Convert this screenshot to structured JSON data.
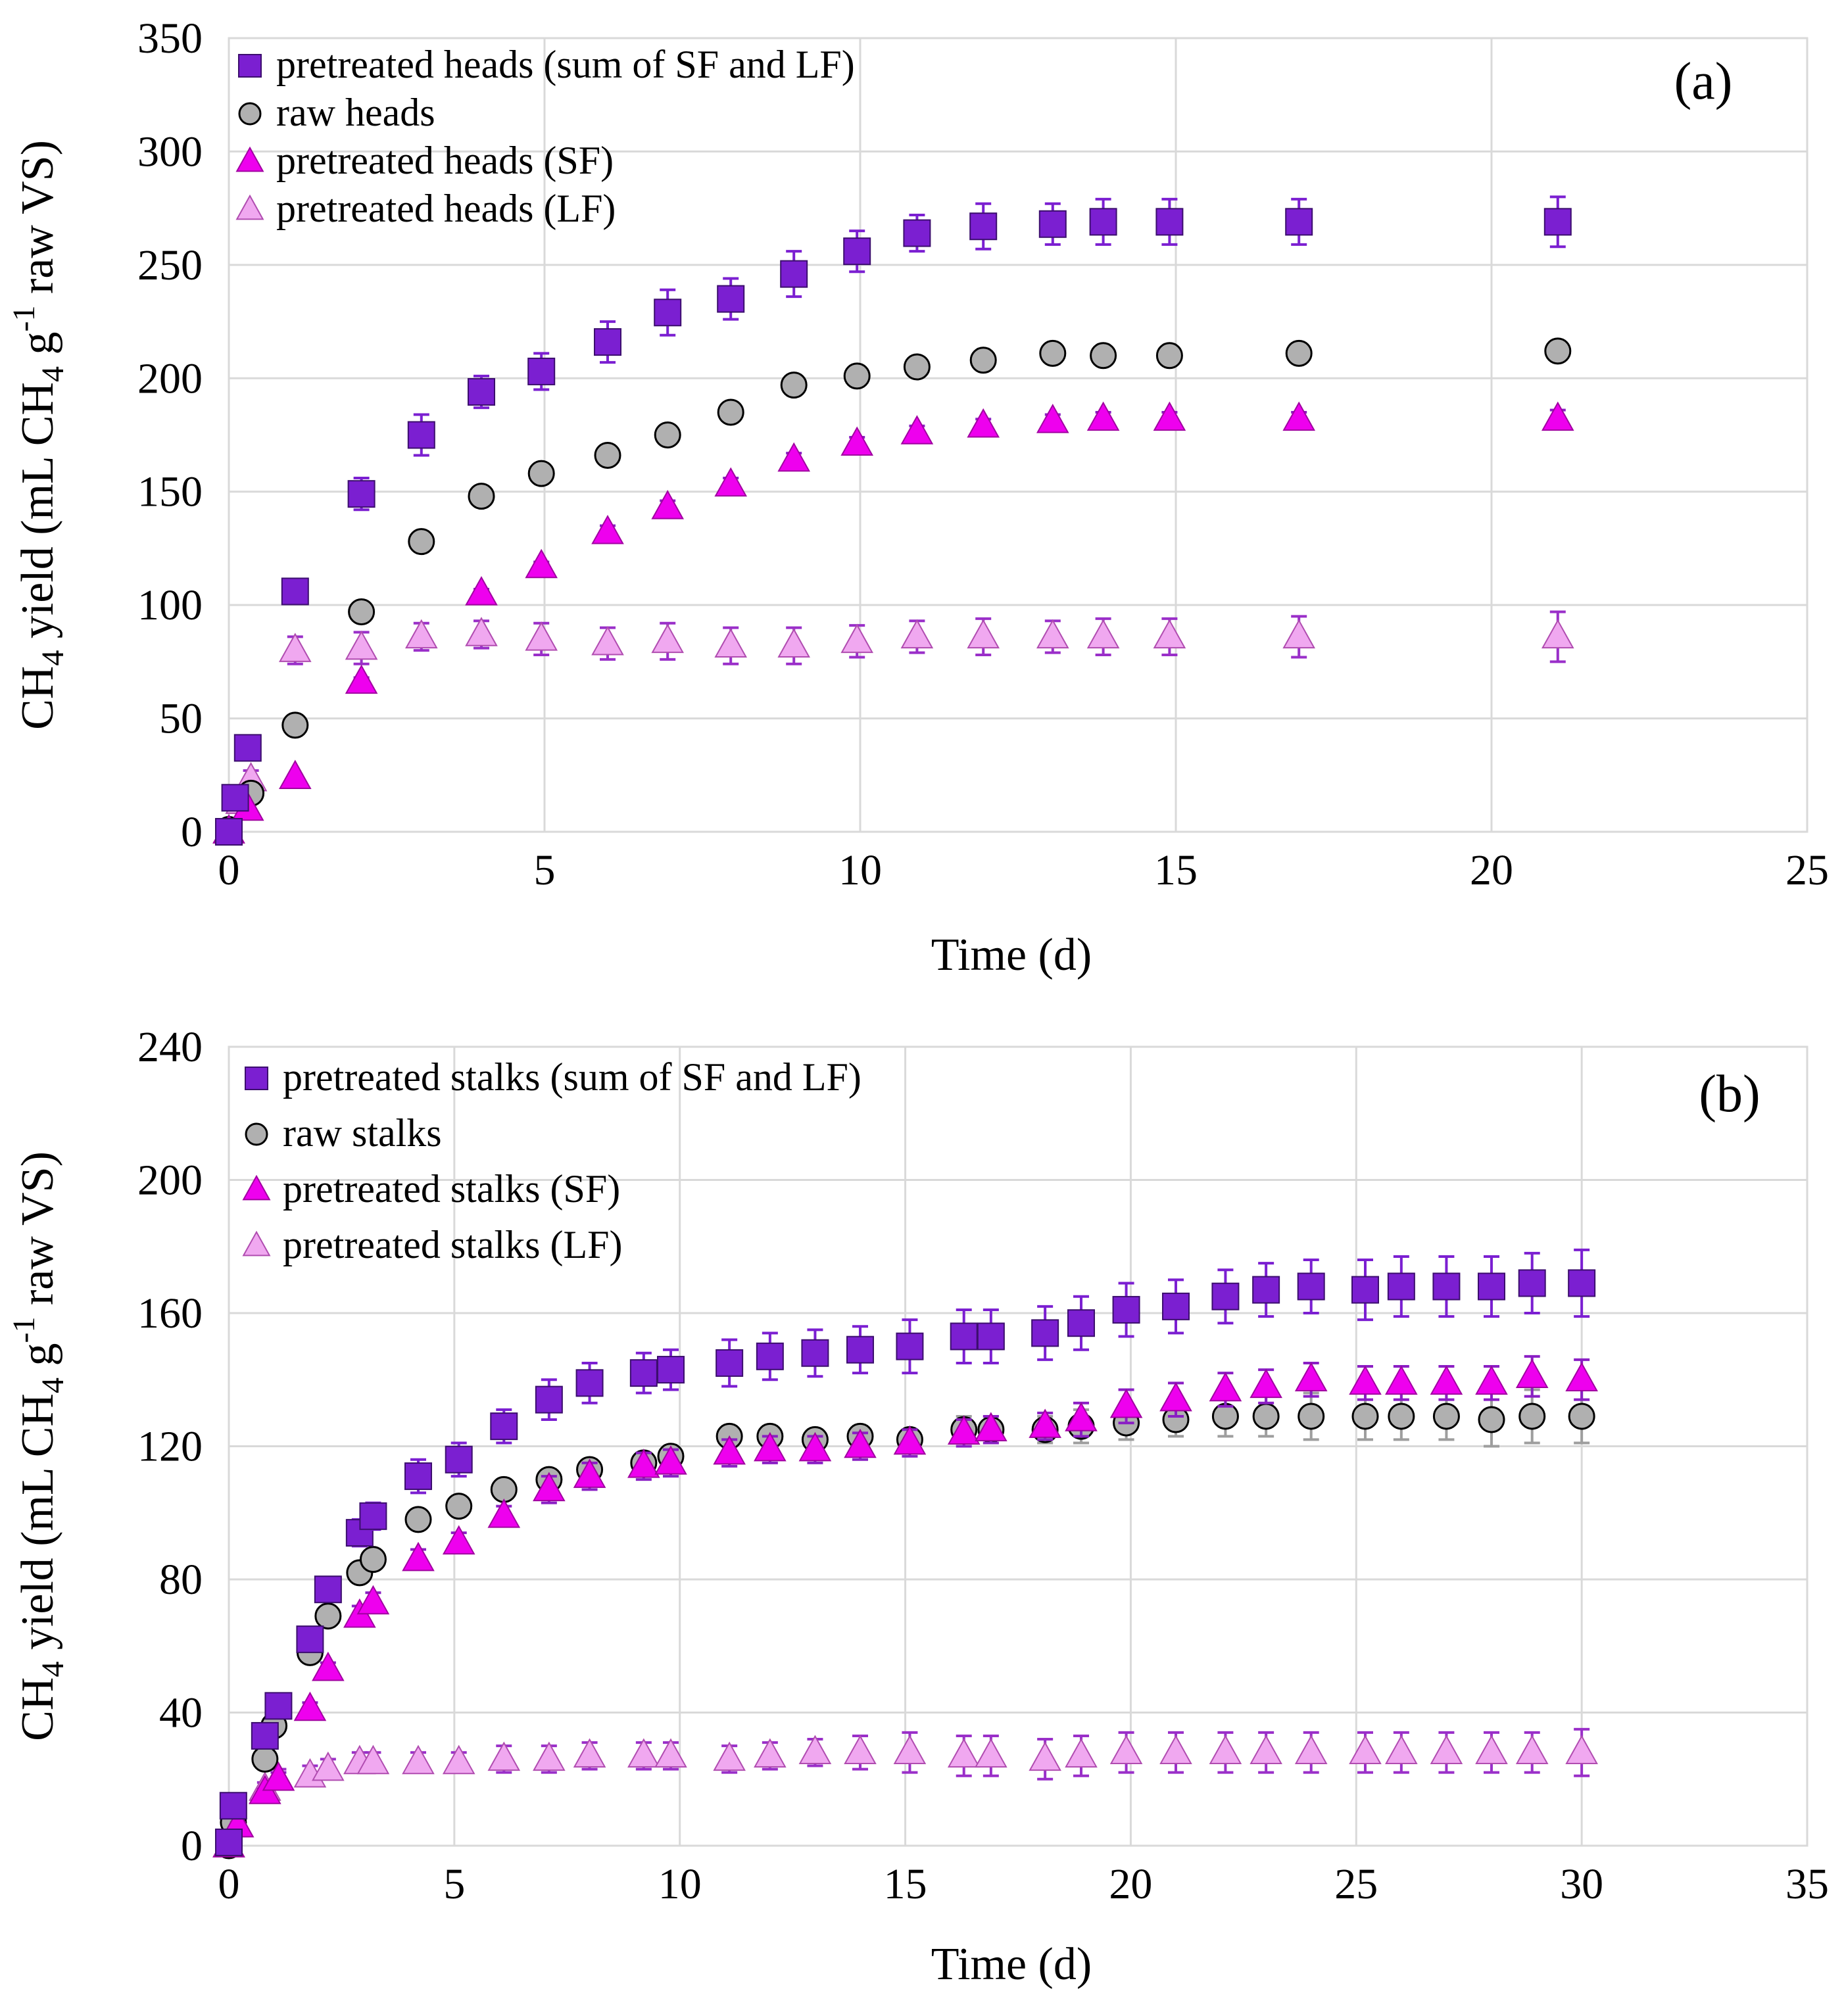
{
  "chart_data": [
    {
      "type": "scatter",
      "panel_label": "(a)",
      "xlabel": "Time (d)",
      "ylabel": {
        "pre": "CH",
        "sub": "4",
        "mid": " yield (mL CH",
        "sub2": "4",
        "mid2": " g",
        "sup": "-1",
        "post": " raw VS)"
      },
      "xlim": [
        0,
        25
      ],
      "ylim": [
        0,
        350
      ],
      "xticks": [
        0,
        5,
        10,
        15,
        20,
        25
      ],
      "yticks": [
        0,
        50,
        100,
        150,
        200,
        250,
        300,
        350
      ],
      "grid": true,
      "legend_position": "top-left",
      "series": [
        {
          "name": "pretreated heads (sum of SF and LF)",
          "marker": "square",
          "color": "#7b1fd1",
          "x": [
            0,
            0.1,
            0.3,
            1.05,
            2.1,
            3.05,
            4,
            4.95,
            6,
            6.95,
            7.95,
            8.95,
            9.95,
            10.9,
            11.95,
            13.05,
            13.85,
            14.9,
            16.95,
            21.05
          ],
          "y": [
            0,
            15,
            37,
            106,
            149,
            175,
            194,
            203,
            216,
            229,
            235,
            246,
            256,
            264,
            267,
            268,
            269,
            269,
            269,
            269
          ],
          "err": [
            0,
            2,
            3,
            5,
            7,
            9,
            7,
            8,
            9,
            10,
            9,
            10,
            9,
            8,
            10,
            9,
            10,
            10,
            10,
            11
          ]
        },
        {
          "name": "raw heads",
          "marker": "circle",
          "color": "#b0b0b0",
          "x": [
            0,
            0.35,
            1.05,
            2.1,
            3.05,
            4,
            4.95,
            6,
            6.95,
            7.95,
            8.95,
            9.95,
            10.9,
            11.95,
            13.05,
            13.85,
            14.9,
            16.95,
            21.05
          ],
          "y": [
            1,
            17,
            47,
            97,
            128,
            148,
            158,
            166,
            175,
            185,
            197,
            201,
            205,
            208,
            211,
            210,
            210,
            211,
            212
          ],
          "err": [
            0,
            1,
            2,
            2,
            2,
            2,
            2,
            2,
            2,
            2,
            2,
            2,
            2,
            2,
            2,
            2,
            2,
            2,
            2
          ]
        },
        {
          "name": "pretreated heads (SF)",
          "marker": "triangle",
          "color": "#ee00ee",
          "x": [
            0,
            0.3,
            1.05,
            2.1,
            4,
            4.95,
            6,
            6.95,
            7.95,
            8.95,
            9.95,
            10.9,
            11.95,
            13.05,
            13.85,
            14.9,
            16.95,
            21.05
          ],
          "y": [
            0,
            10,
            24,
            66,
            105,
            117,
            132,
            143,
            153,
            164,
            171,
            176,
            179,
            181,
            182,
            182,
            182,
            182
          ],
          "err": [
            0,
            1,
            1,
            2,
            2,
            2,
            3,
            3,
            3,
            3,
            3,
            3,
            3,
            3,
            3,
            3,
            3,
            4
          ]
        },
        {
          "name": "pretreated heads (LF)",
          "marker": "triangle",
          "color": "#f0a8f0",
          "x": [
            0,
            0.2,
            0.35,
            1.05,
            2.1,
            3.05,
            4,
            4.95,
            6,
            6.95,
            7.95,
            8.95,
            9.95,
            10.9,
            11.95,
            13.05,
            13.85,
            14.9,
            16.95,
            21.05
          ],
          "y": [
            0,
            13,
            23,
            80,
            81,
            86,
            87,
            85,
            83,
            84,
            82,
            82,
            84,
            86,
            86,
            86,
            86,
            86,
            86,
            86
          ],
          "err": [
            0,
            3,
            4,
            6,
            7,
            6,
            6,
            7,
            7,
            8,
            8,
            8,
            7,
            7,
            8,
            7,
            8,
            8,
            9,
            11
          ]
        }
      ]
    },
    {
      "type": "scatter",
      "panel_label": "(b)",
      "xlabel": "Time (d)",
      "ylabel": {
        "pre": "CH",
        "sub": "4",
        "mid": " yield (mL CH",
        "sub2": "4",
        "mid2": " g",
        "sup": "-1",
        "post": " raw VS)"
      },
      "xlim": [
        0,
        35
      ],
      "ylim": [
        0,
        240
      ],
      "xticks": [
        0,
        5,
        10,
        15,
        20,
        25,
        30,
        35
      ],
      "yticks": [
        0,
        40,
        80,
        120,
        160,
        200,
        240
      ],
      "grid": true,
      "legend_position": "top-left",
      "series": [
        {
          "name": "pretreated stalks (sum of SF and LF)",
          "marker": "square",
          "color": "#7b1fd1",
          "x": [
            0,
            0.1,
            0.8,
            1.1,
            1.8,
            2.2,
            2.9,
            3.2,
            4.2,
            5.1,
            6.1,
            7.1,
            8.0,
            9.2,
            9.8,
            11.1,
            12.0,
            13.0,
            14.0,
            15.1,
            16.3,
            16.9,
            18.1,
            18.9,
            19.9,
            21.0,
            22.1,
            23.0,
            24.0,
            25.2,
            26.0,
            27.0,
            28.0,
            28.9,
            30.0
          ],
          "y": [
            1,
            12,
            33,
            42,
            62,
            77,
            94,
            99,
            111,
            116,
            126,
            134,
            139,
            142,
            143,
            145,
            147,
            148,
            149,
            150,
            153,
            153,
            154,
            157,
            161,
            162,
            165,
            167,
            168,
            167,
            168,
            168,
            168,
            169,
            169
          ],
          "err": [
            0,
            1,
            2,
            3,
            3,
            3,
            4,
            4,
            5,
            5,
            5,
            6,
            6,
            6,
            6,
            7,
            7,
            7,
            7,
            8,
            8,
            8,
            8,
            8,
            8,
            8,
            8,
            8,
            8,
            9,
            9,
            9,
            9,
            9,
            10
          ]
        },
        {
          "name": "raw stalks",
          "marker": "circle",
          "color": "#b0b0b0",
          "x": [
            0,
            0.1,
            0.8,
            1.0,
            1.8,
            2.2,
            2.9,
            3.2,
            4.2,
            5.1,
            6.1,
            7.1,
            8.0,
            9.2,
            9.8,
            11.1,
            12.0,
            13.0,
            14.0,
            15.1,
            16.3,
            16.9,
            18.1,
            18.9,
            19.9,
            21.0,
            22.1,
            23.0,
            24.0,
            25.2,
            26.0,
            27.0,
            28.0,
            28.9,
            30.0
          ],
          "y": [
            0,
            7,
            26,
            36,
            58,
            69,
            82,
            86,
            98,
            102,
            107,
            110,
            113,
            115,
            117,
            123,
            123,
            122,
            123,
            122,
            125,
            125,
            125,
            126,
            127,
            128,
            129,
            129,
            129,
            129,
            129,
            129,
            128,
            129,
            129
          ],
          "err": [
            0,
            1,
            1,
            1,
            2,
            2,
            2,
            2,
            2,
            2,
            2,
            3,
            3,
            3,
            3,
            3,
            3,
            3,
            3,
            3,
            4,
            4,
            4,
            5,
            5,
            5,
            6,
            6,
            7,
            7,
            7,
            7,
            8,
            8,
            8
          ]
        },
        {
          "name": "pretreated stalks (SF)",
          "marker": "triangle",
          "color": "#ee00ee",
          "x": [
            0,
            0.2,
            0.8,
            1.1,
            1.8,
            2.2,
            2.9,
            3.2,
            4.2,
            5.1,
            6.1,
            7.1,
            8.0,
            9.2,
            9.8,
            11.1,
            12.0,
            13.0,
            14.0,
            15.1,
            16.3,
            16.9,
            18.1,
            18.9,
            19.9,
            21.0,
            22.1,
            23.0,
            24.0,
            25.2,
            26.0,
            27.0,
            28.0,
            28.9,
            30.0
          ],
          "y": [
            0,
            6,
            16,
            20,
            41,
            53,
            69,
            73,
            86,
            91,
            99,
            107,
            111,
            114,
            115,
            118,
            119,
            119,
            120,
            121,
            124,
            125,
            126,
            128,
            132,
            134,
            137,
            138,
            140,
            139,
            139,
            139,
            139,
            141,
            140
          ],
          "err": [
            0,
            1,
            1,
            2,
            2,
            2,
            3,
            3,
            3,
            3,
            3,
            4,
            4,
            4,
            4,
            4,
            4,
            4,
            4,
            4,
            4,
            4,
            4,
            5,
            5,
            5,
            5,
            5,
            5,
            5,
            5,
            5,
            5,
            6,
            6
          ]
        },
        {
          "name": "pretreated stalks (LF)",
          "marker": "triangle",
          "color": "#f0a8f0",
          "x": [
            0,
            0.1,
            0.8,
            1.1,
            1.8,
            2.2,
            2.9,
            3.2,
            4.2,
            5.1,
            6.1,
            7.1,
            8.0,
            9.2,
            9.8,
            11.1,
            12.0,
            13.0,
            14.0,
            15.1,
            16.3,
            16.9,
            18.1,
            18.9,
            19.9,
            21.0,
            22.1,
            23.0,
            24.0,
            25.2,
            26.0,
            27.0,
            28.0,
            28.9,
            30.0
          ],
          "y": [
            0,
            6,
            17,
            20,
            21,
            23,
            25,
            25,
            25,
            25,
            26,
            26,
            27,
            27,
            27,
            26,
            27,
            28,
            28,
            28,
            27,
            27,
            26,
            27,
            28,
            28,
            28,
            28,
            28,
            28,
            28,
            28,
            28,
            28,
            28
          ],
          "err": [
            0,
            1,
            2,
            3,
            3,
            3,
            3,
            3,
            3,
            3,
            4,
            4,
            4,
            4,
            4,
            4,
            4,
            4,
            5,
            6,
            6,
            6,
            6,
            6,
            6,
            6,
            6,
            6,
            6,
            6,
            6,
            6,
            6,
            6,
            7
          ]
        }
      ]
    }
  ]
}
